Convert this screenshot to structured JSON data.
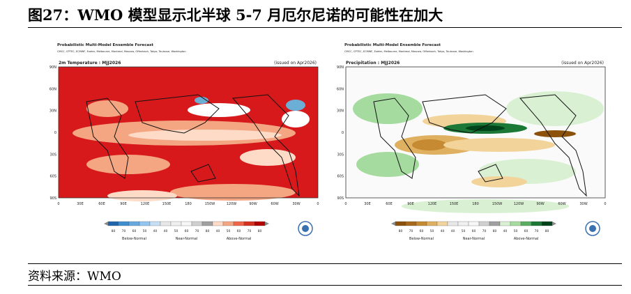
{
  "header": {
    "title": "图27：WMO 模型显示北半球 5-7 月厄尔尼诺的可能性在加大"
  },
  "panels": [
    {
      "heading": "Probabilistic Multi-Model Ensemble Forecast",
      "centres": "CMCC, CPTEC, ECMWF, Exeter, Melbourne, Montreal, Moscow, Offenbach, Tokyo, Toulouse, Washington",
      "subtitle": "2m Temperature : MJJ2026",
      "issued": "(issued on Apr2026)",
      "lat_labels": [
        "90N",
        "60N",
        "30N",
        "0",
        "30S",
        "60S",
        "90S"
      ],
      "lon_labels": [
        "0",
        "30E",
        "60E",
        "90E",
        "120E",
        "150E",
        "180",
        "150W",
        "120W",
        "90W",
        "60W",
        "30W",
        "0"
      ],
      "colorbar_labels": [
        "80",
        "70",
        "60",
        "50",
        "40",
        "40",
        "50",
        "60",
        "70",
        "80",
        "40",
        "50",
        "60",
        "70",
        "80"
      ],
      "categories": [
        "Below-Normal",
        "Near-Normal",
        "Above-Normal"
      ]
    },
    {
      "heading": "Probabilistic Multi-Model Ensemble Forecast",
      "centres": "CMCC, CPTEC, ECMWF, Exeter, Melbourne, Montreal, Moscow, Offenbach, Tokyo, Toulouse, Washington",
      "subtitle": "Precipitation : MJJ2026",
      "issued": "(issued on Apr2026)",
      "lat_labels": [
        "90N",
        "60N",
        "30N",
        "0",
        "30S",
        "60S",
        "90S"
      ],
      "lon_labels": [
        "0",
        "30E",
        "60E",
        "90E",
        "120E",
        "150E",
        "180",
        "150W",
        "120W",
        "90W",
        "60W",
        "30W",
        "0"
      ],
      "colorbar_labels": [
        "80",
        "70",
        "60",
        "50",
        "40",
        "40",
        "50",
        "60",
        "70",
        "80",
        "40",
        "50",
        "60",
        "70",
        "80"
      ],
      "categories": [
        "Below-Normal",
        "Near-Normal",
        "Above-Normal"
      ]
    }
  ],
  "footer": {
    "source": "资料来源：WMO"
  }
}
